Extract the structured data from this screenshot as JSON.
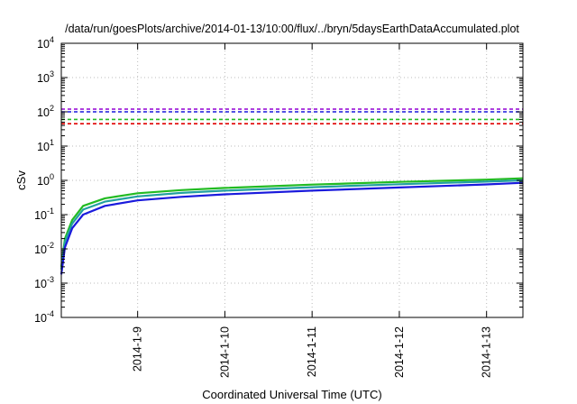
{
  "chart_data": {
    "type": "line",
    "title": "/data/run/goesPlots/archive/2014-01-13/10:00/flux/../bryn/5daysEarthDataAccumulated.plot",
    "xlabel": "Coordinated Universal Time (UTC)",
    "ylabel": "cSv",
    "yscale": "log",
    "ylim": [
      0.0001,
      10000
    ],
    "xlim": [
      "2014-01-08 03:00",
      "2014-01-13 10:00"
    ],
    "grid": true,
    "x_ticks": [
      "2014-1-9",
      "2014-1-10",
      "2014-1-11",
      "2014-1-12",
      "2014-1-13"
    ],
    "y_ticks": [
      {
        "base": "10",
        "exp": "-4"
      },
      {
        "base": "10",
        "exp": "-3"
      },
      {
        "base": "10",
        "exp": "-2"
      },
      {
        "base": "10",
        "exp": "-1"
      },
      {
        "base": "10",
        "exp": "0"
      },
      {
        "base": "10",
        "exp": "1"
      },
      {
        "base": "10",
        "exp": "2"
      },
      {
        "base": "10",
        "exp": "3"
      },
      {
        "base": "10",
        "exp": "4"
      }
    ],
    "series": [
      {
        "color": "#22bb22",
        "style": "solid",
        "x": [
          "2014-01-08 03:00",
          "2014-01-08 04:00",
          "2014-01-08 06:00",
          "2014-01-08 09:00",
          "2014-01-08 15:00",
          "2014-01-09 00:00",
          "2014-01-09 12:00",
          "2014-01-10 00:00",
          "2014-01-11 00:00",
          "2014-01-12 00:00",
          "2014-01-13 00:00",
          "2014-01-13 10:00"
        ],
        "y": [
          0.003,
          0.02,
          0.07,
          0.18,
          0.3,
          0.42,
          0.52,
          0.6,
          0.75,
          0.9,
          1.05,
          1.15
        ]
      },
      {
        "color": "#22a0a0",
        "style": "solid",
        "x": [
          "2014-01-08 03:00",
          "2014-01-08 04:00",
          "2014-01-08 06:00",
          "2014-01-08 09:00",
          "2014-01-08 15:00",
          "2014-01-09 00:00",
          "2014-01-09 12:00",
          "2014-01-10 00:00",
          "2014-01-11 00:00",
          "2014-01-12 00:00",
          "2014-01-13 00:00",
          "2014-01-13 10:00"
        ],
        "y": [
          0.0025,
          0.016,
          0.055,
          0.14,
          0.24,
          0.34,
          0.43,
          0.5,
          0.63,
          0.77,
          0.92,
          1.0
        ]
      },
      {
        "color": "#1a1adc",
        "style": "solid",
        "x": [
          "2014-01-08 03:00",
          "2014-01-08 04:00",
          "2014-01-08 06:00",
          "2014-01-08 09:00",
          "2014-01-08 15:00",
          "2014-01-09 00:00",
          "2014-01-09 12:00",
          "2014-01-10 00:00",
          "2014-01-11 00:00",
          "2014-01-12 00:00",
          "2014-01-13 00:00",
          "2014-01-13 10:00"
        ],
        "y": [
          0.0018,
          0.011,
          0.04,
          0.1,
          0.18,
          0.26,
          0.33,
          0.39,
          0.5,
          0.62,
          0.76,
          0.85
        ]
      },
      {
        "color": "#9400d3",
        "style": "dashed",
        "x": [
          "2014-01-08 03:00",
          "2014-01-13 10:00"
        ],
        "y": [
          120,
          120
        ]
      },
      {
        "color": "#1a1adc",
        "style": "dashed",
        "x": [
          "2014-01-08 03:00",
          "2014-01-13 10:00"
        ],
        "y": [
          100,
          100
        ]
      },
      {
        "color": "#22bb22",
        "style": "dashed",
        "x": [
          "2014-01-08 03:00",
          "2014-01-13 10:00"
        ],
        "y": [
          60,
          60
        ]
      },
      {
        "color": "#e00000",
        "style": "dashed",
        "x": [
          "2014-01-08 03:00",
          "2014-01-13 10:00"
        ],
        "y": [
          45,
          45
        ]
      }
    ]
  }
}
